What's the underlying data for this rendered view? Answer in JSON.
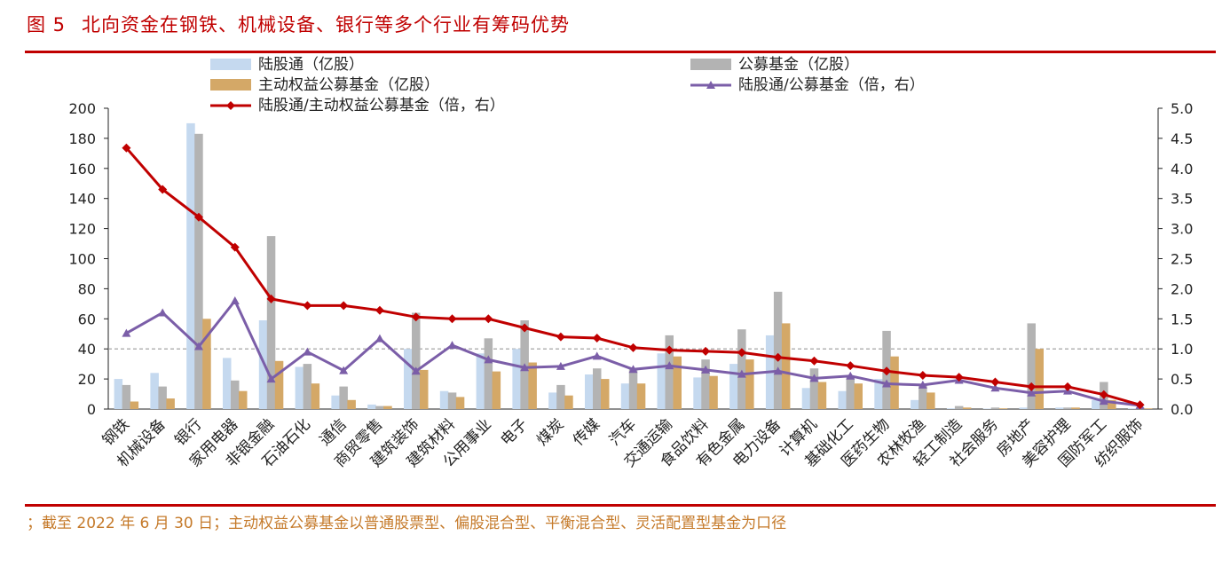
{
  "figure": {
    "number": "图 5",
    "title": "北向资金在钢铁、机械设备、银行等多个行业有筹码优势",
    "note": "；截至 2022 年 6 月 30 日；主动权益公募基金以普通股票型、偏股混合型、平衡混合型、灵活配置型基金为口径"
  },
  "colors": {
    "lugutong": "#c5d9ef",
    "gongmu": "#b3b3b3",
    "zhudong": "#d4a867",
    "ratio_gongmu_line": "#7b5ea8",
    "ratio_zhudong_line": "#c00000",
    "accent": "#c00000"
  },
  "chart_data": {
    "type": "bar",
    "categories": [
      "钢铁",
      "机械设备",
      "银行",
      "家用电器",
      "非银金融",
      "石油石化",
      "通信",
      "商贸零售",
      "建筑装饰",
      "建筑材料",
      "公用事业",
      "电子",
      "煤炭",
      "传媒",
      "汽车",
      "交通运输",
      "食品饮料",
      "有色金属",
      "电力设备",
      "计算机",
      "基础化工",
      "医药生物",
      "农林牧渔",
      "轻工制造",
      "社会服务",
      "房地产",
      "美容护理",
      "国防军工",
      "纺织服饰"
    ],
    "series": [
      {
        "name": "陆股通（亿股）",
        "kind": "bar",
        "axis": "left",
        "values": [
          20,
          24,
          190,
          34,
          59,
          28,
          9,
          3,
          40,
          12,
          37,
          40,
          11,
          23,
          17,
          37,
          21,
          30,
          49,
          14,
          12,
          20,
          6,
          0.5,
          0.3,
          1,
          1,
          6,
          0.5
        ]
      },
      {
        "name": "公募基金（亿股）",
        "kind": "bar",
        "axis": "left",
        "values": [
          16,
          15,
          183,
          19,
          115,
          30,
          15,
          2,
          64,
          11,
          47,
          59,
          16,
          27,
          27,
          49,
          33,
          53,
          78,
          27,
          22,
          52,
          16,
          2,
          1,
          57,
          1,
          18,
          1
        ]
      },
      {
        "name": "主动权益公募基金（亿股）",
        "kind": "bar",
        "axis": "left",
        "values": [
          5,
          7,
          60,
          12,
          32,
          17,
          6,
          2,
          26,
          8,
          25,
          31,
          9,
          20,
          17,
          35,
          22,
          33,
          57,
          18,
          17,
          35,
          11,
          1,
          0.5,
          40,
          1,
          6,
          0.5
        ]
      },
      {
        "name": "陆股通/公募基金（倍，右）",
        "kind": "line",
        "axis": "right",
        "marker": "triangle",
        "values": [
          1.26,
          1.6,
          1.04,
          1.8,
          0.5,
          0.95,
          0.64,
          1.17,
          0.63,
          1.06,
          0.82,
          0.69,
          0.71,
          0.88,
          0.66,
          0.72,
          0.65,
          0.58,
          0.63,
          0.51,
          0.55,
          0.42,
          0.4,
          0.48,
          0.35,
          0.27,
          0.3,
          0.13,
          0.06
        ]
      },
      {
        "name": "陆股通/主动权益公募基金（倍，右）",
        "kind": "line",
        "axis": "right",
        "marker": "diamond",
        "values": [
          4.34,
          3.65,
          3.19,
          2.69,
          1.83,
          1.72,
          1.72,
          1.64,
          1.53,
          1.5,
          1.5,
          1.35,
          1.2,
          1.18,
          1.02,
          0.98,
          0.96,
          0.94,
          0.86,
          0.8,
          0.72,
          0.63,
          0.56,
          0.53,
          0.45,
          0.37,
          0.37,
          0.24,
          0.07
        ]
      }
    ],
    "y_left": {
      "min": 0,
      "max": 200,
      "ticks": [
        "0",
        "20",
        "40",
        "60",
        "80",
        "100",
        "120",
        "140",
        "160",
        "180",
        "200"
      ]
    },
    "y_right": {
      "min": 0,
      "max": 5,
      "ticks": [
        "0.0",
        "0.5",
        "1.0",
        "1.5",
        "2.0",
        "2.5",
        "3.0",
        "3.5",
        "4.0",
        "4.5",
        "5.0"
      ]
    },
    "reference_line": {
      "axis": "right",
      "value": 1.0,
      "style": "dashed"
    },
    "legend": {
      "position": "top",
      "entries": [
        {
          "label": "陆股通（亿股）",
          "series": 0
        },
        {
          "label": "公募基金（亿股）",
          "series": 1
        },
        {
          "label": "主动权益公募基金（亿股）",
          "series": 2
        },
        {
          "label": "陆股通/公募基金（倍，右）",
          "series": 3
        },
        {
          "label": "陆股通/主动权益公募基金（倍，右）",
          "series": 4
        }
      ]
    },
    "grid": false
  }
}
